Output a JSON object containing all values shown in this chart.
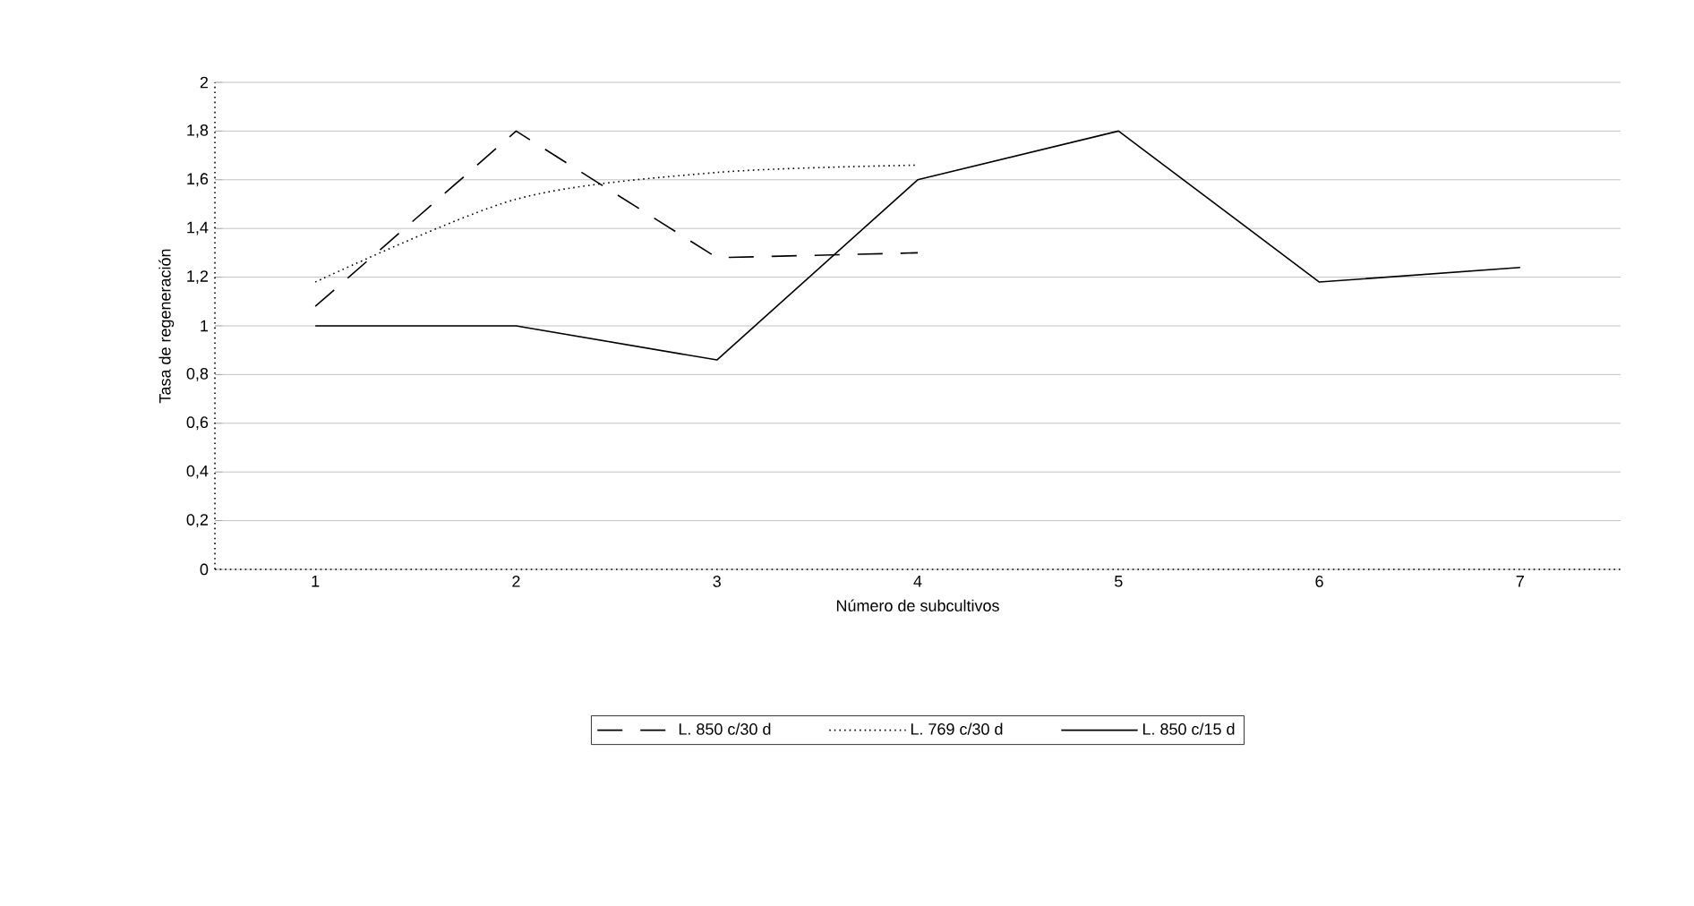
{
  "chart_data": {
    "type": "line",
    "xlabel": "Número de subcultivos",
    "ylabel": "Tasa de regeneración",
    "categories": [
      "1",
      "2",
      "3",
      "4",
      "5",
      "6",
      "7"
    ],
    "series": [
      {
        "name": "L. 850 c/30 d",
        "color": "#000000",
        "line_style": "dashed",
        "values": [
          1.08,
          1.8,
          1.28,
          1.3,
          null,
          null,
          null
        ]
      },
      {
        "name": "L. 769 c/30 d",
        "color": "#000000",
        "line_style": "dotted",
        "values": [
          1.18,
          1.52,
          1.63,
          1.66,
          null,
          null,
          null
        ]
      },
      {
        "name": "L. 850 c/15 d",
        "color": "#000000",
        "line_style": "solid",
        "values": [
          1.0,
          1.0,
          0.86,
          1.6,
          1.8,
          1.18,
          1.24
        ]
      }
    ],
    "ylim": [
      0,
      2
    ],
    "yticks": [
      {
        "value": 0,
        "label": "0"
      },
      {
        "value": 0.2,
        "label": "0,2"
      },
      {
        "value": 0.4,
        "label": "0,4"
      },
      {
        "value": 0.6,
        "label": "0,6"
      },
      {
        "value": 0.8,
        "label": "0,8"
      },
      {
        "value": 1,
        "label": "1"
      },
      {
        "value": 1.2,
        "label": "1,2"
      },
      {
        "value": 1.4,
        "label": "1,4"
      },
      {
        "value": 1.6,
        "label": "1,6"
      },
      {
        "value": 1.8,
        "label": "1,8"
      },
      {
        "value": 2,
        "label": "2"
      }
    ],
    "grid": "y",
    "legend": "bottom",
    "marker": "none"
  }
}
